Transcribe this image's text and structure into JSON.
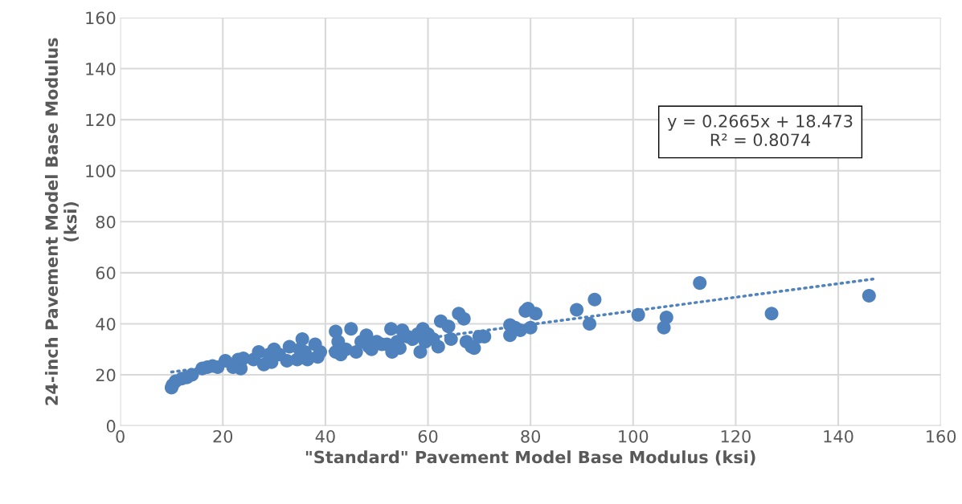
{
  "chart_data": {
    "type": "scatter",
    "xlabel": "\"Standard\" Pavement Model Base Modulus (ksi)",
    "ylabel": "24-inch Pavement Model Base Modulus\n(ksi)",
    "xlim": [
      0,
      160
    ],
    "ylim": [
      0,
      160
    ],
    "xticks": [
      0,
      20,
      40,
      60,
      80,
      100,
      120,
      140,
      160
    ],
    "yticks": [
      0,
      20,
      40,
      60,
      80,
      100,
      120,
      140,
      160
    ],
    "grid": true,
    "marker": "circle",
    "series": [
      {
        "color": "#4f81bd",
        "x": [
          10,
          10.2,
          10.8,
          12,
          13,
          14,
          16,
          17,
          18,
          19,
          20.5,
          22,
          23,
          23.5,
          24,
          26,
          27,
          28,
          29,
          29.5,
          30,
          31,
          32.5,
          33,
          34.5,
          35,
          35.5,
          36,
          36.5,
          38,
          38.5,
          39,
          42,
          42.5,
          42,
          43,
          44,
          45,
          46,
          47,
          48,
          48.5,
          49,
          50,
          51,
          52,
          52.8,
          53,
          54,
          54.5,
          55,
          56,
          57,
          58,
          58.5,
          59,
          59.5,
          60,
          61,
          62,
          62.5,
          64,
          64.5,
          66,
          67,
          67.5,
          68.5,
          69,
          70,
          71,
          76,
          76,
          77,
          78,
          79,
          79.5,
          80,
          81,
          89,
          91.5,
          92.5,
          101,
          106,
          106.5,
          113,
          127,
          146
        ],
        "values": [
          15,
          16,
          17.5,
          18.5,
          19,
          20,
          22.5,
          23,
          23.5,
          23,
          25.5,
          23,
          26,
          22.5,
          26.5,
          26,
          29,
          24,
          28,
          25,
          30,
          28,
          25.5,
          31,
          26,
          30,
          34,
          29,
          26,
          32,
          27,
          29,
          37,
          33,
          29,
          28,
          30,
          38,
          29,
          33,
          35.5,
          31,
          30,
          33,
          32,
          32,
          38,
          29,
          33,
          30.5,
          37.5,
          35,
          34,
          36,
          29,
          38,
          33,
          36,
          34,
          31,
          41,
          39,
          34,
          44,
          42,
          33,
          31,
          30.5,
          35,
          35,
          39.5,
          35.5,
          38.5,
          37.5,
          45,
          46,
          38.5,
          44,
          45.5,
          40,
          49.5,
          43.5,
          38.5,
          42.5,
          56,
          44,
          51
        ]
      },
      {
        "type": "line",
        "color": "#4f81bd",
        "line_style": "dotted",
        "marker": "none",
        "x": [
          10,
          147
        ],
        "values": [
          21.1,
          57.6
        ]
      }
    ],
    "annotations": [
      "y = 0.2665x + 18.473\nR² = 0.8074"
    ]
  }
}
